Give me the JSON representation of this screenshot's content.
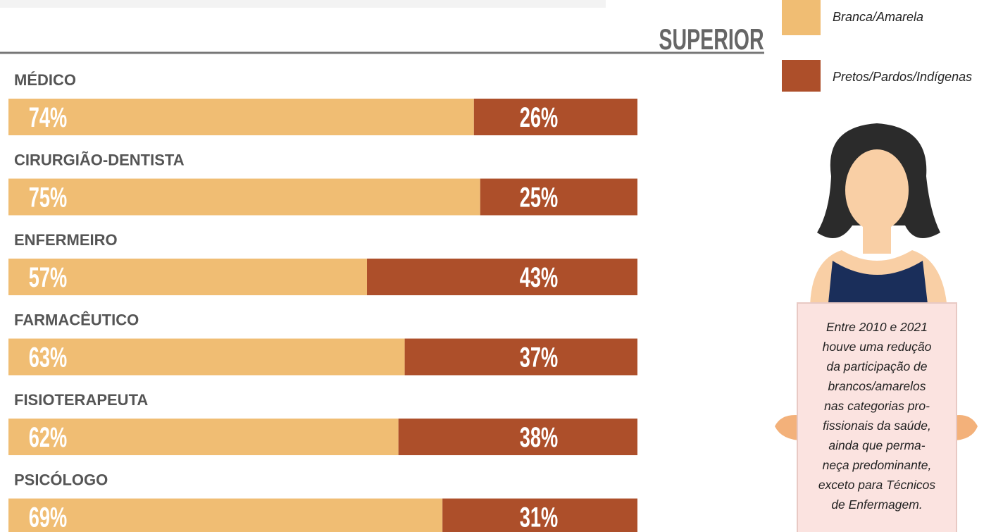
{
  "chart_data": {
    "type": "bar",
    "orientation": "horizontal",
    "stacked": true,
    "title": "SUPERIOR",
    "categories": [
      "MÉDICO",
      "CIRURGIÃO-DENTISTA",
      "ENFERMEIRO",
      "FARMACÊUTICO",
      "FISIOTERAPEUTA",
      "PSICÓLOGO"
    ],
    "series": [
      {
        "name": "Branca/Amarela",
        "color": "#f0bd73",
        "values": [
          74,
          75,
          57,
          63,
          62,
          69
        ],
        "value_labels": [
          "74%",
          "75%",
          "57%",
          "63%",
          "62%",
          "69%"
        ]
      },
      {
        "name": "Pretos/Pardos/Indígenas",
        "color": "#ad4f2a",
        "values": [
          26,
          25,
          43,
          37,
          38,
          31
        ],
        "value_labels": [
          "26%",
          "25%",
          "43%",
          "37%",
          "38%",
          "31%"
        ]
      }
    ],
    "annotation": [
      "Entre 2010 e 2021",
      "houve uma redução",
      "da participação de",
      "brancos/amarelos",
      "nas categorias pro-",
      "fissionais da saúde,",
      "ainda que perma-",
      "neça predominante,",
      "exceto para Técnicos",
      "de Enfermagem."
    ]
  }
}
